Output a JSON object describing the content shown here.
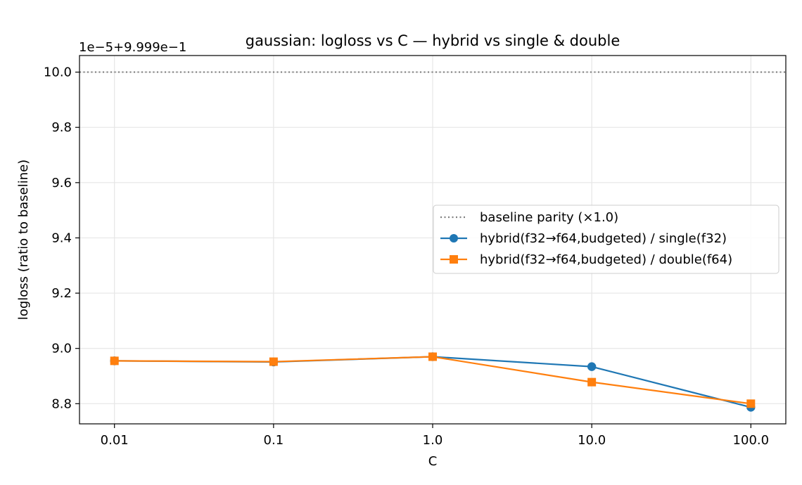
{
  "chart_data": {
    "type": "line",
    "title": "gaussian: logloss vs C — hybrid vs single & double",
    "xlabel": "C",
    "ylabel": "logloss (ratio to baseline)",
    "offset_label": "1e−5+9.999e−1",
    "x_scale": "log",
    "x_ticks": [
      0.01,
      0.1,
      1.0,
      10.0,
      100.0
    ],
    "x_tick_labels": [
      "0.01",
      "0.1",
      "1.0",
      "10.0",
      "100.0"
    ],
    "y_ticks": [
      8.8,
      9.0,
      9.2,
      9.4,
      9.6,
      9.8,
      10.0
    ],
    "y_tick_labels": [
      "8.8",
      "9.0",
      "9.2",
      "9.4",
      "9.6",
      "9.8",
      "10.0"
    ],
    "ylim": [
      8.727,
      10.06
    ],
    "grid": true,
    "legend_position": "center-right",
    "baseline": {
      "name": "baseline parity (×1.0)",
      "y": 10.0,
      "color": "#808080",
      "style": "dotted"
    },
    "x": [
      0.01,
      0.1,
      1.0,
      10.0,
      100.0
    ],
    "series": [
      {
        "name": "hybrid(f32→f64,budgeted) / single(f32)",
        "color": "#1f77b4",
        "marker": "circle",
        "values": [
          8.955,
          8.951,
          8.97,
          8.934,
          8.787
        ]
      },
      {
        "name": "hybrid(f32→f64,budgeted) / double(f64)",
        "color": "#ff7f0e",
        "marker": "square",
        "values": [
          8.955,
          8.952,
          8.97,
          8.878,
          8.8
        ]
      }
    ]
  }
}
